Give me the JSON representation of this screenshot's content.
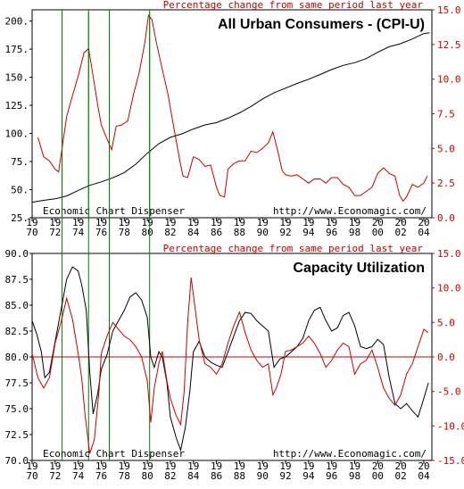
{
  "chart_data": [
    {
      "type": "line",
      "title": "All Urban Consumers - (CPI-U)",
      "subtitle": "Percentage change from same period last year",
      "left_label": "Economic Chart Dispenser",
      "right_label": "http://www.Economagic.com/",
      "x_range": [
        1970,
        2004.7
      ],
      "x_ticks": [
        1970,
        1972,
        1974,
        1976,
        1978,
        1980,
        1982,
        1984,
        1986,
        1988,
        1990,
        1992,
        1994,
        1996,
        1998,
        2000,
        2002,
        2004
      ],
      "x_tick_labels": [
        [
          "19",
          "70"
        ],
        [
          "19",
          "72"
        ],
        [
          "19",
          "74"
        ],
        [
          "19",
          "76"
        ],
        [
          "19",
          "78"
        ],
        [
          "19",
          "80"
        ],
        [
          "19",
          "82"
        ],
        [
          "19",
          "84"
        ],
        [
          "19",
          "86"
        ],
        [
          "19",
          "88"
        ],
        [
          "19",
          "90"
        ],
        [
          "19",
          "92"
        ],
        [
          "19",
          "94"
        ],
        [
          "19",
          "96"
        ],
        [
          "19",
          "98"
        ],
        [
          "20",
          "00"
        ],
        [
          "20",
          "02"
        ],
        [
          "20",
          "04"
        ]
      ],
      "y_left": {
        "range": [
          25,
          210
        ],
        "ticks": [
          "25.",
          "50.",
          "75.",
          "100.",
          "125.",
          "150.",
          "175.",
          "200."
        ],
        "tick_values": [
          25,
          50,
          75,
          100,
          125,
          150,
          175,
          200
        ],
        "color": "#000000"
      },
      "y_right": {
        "range": [
          0,
          15
        ],
        "ticks": [
          "0.0",
          "2.5",
          "5.0",
          "7.5",
          "10.0",
          "12.5",
          "15.0"
        ],
        "tick_values": [
          0,
          2.5,
          5,
          7.5,
          10,
          12.5,
          15
        ],
        "color": "#cc0000"
      },
      "series": [
        {
          "axis": "left",
          "color": "#000000",
          "x": [
            1970,
            1971,
            1972,
            1973,
            1974,
            1975,
            1976,
            1977,
            1978,
            1979,
            1980,
            1981,
            1982,
            1983,
            1984,
            1985,
            1986,
            1987,
            1988,
            1989,
            1990,
            1991,
            1992,
            1993,
            1994,
            1995,
            1996,
            1997,
            1998,
            1999,
            2000,
            2001,
            2002,
            2003,
            2004,
            2004.5
          ],
          "y": [
            38.8,
            40.5,
            41.8,
            44.4,
            49.3,
            53.8,
            56.9,
            60.6,
            65.2,
            72.6,
            82.4,
            90.9,
            96.5,
            99.6,
            103.9,
            107.6,
            109.6,
            113.6,
            118.3,
            124.0,
            130.7,
            136.2,
            140.3,
            144.5,
            148.2,
            152.4,
            156.9,
            160.5,
            163.0,
            166.6,
            172.2,
            177.1,
            179.9,
            184.0,
            188.9,
            189.5
          ]
        },
        {
          "axis": "right",
          "color": "#cc0000",
          "x": [
            1970.5,
            1971,
            1971.5,
            1972,
            1972.3,
            1973,
            1973.5,
            1974,
            1974.5,
            1974.9,
            1975.3,
            1975.7,
            1976,
            1976.4,
            1976.9,
            1977.3,
            1977.8,
            1978.3,
            1978.8,
            1979.3,
            1979.8,
            1980.1,
            1980.4,
            1980.8,
            1981.3,
            1981.8,
            1982.3,
            1982.8,
            1983.1,
            1983.5,
            1984,
            1984.5,
            1985,
            1985.5,
            1986,
            1986.3,
            1986.7,
            1987,
            1987.5,
            1988,
            1988.5,
            1989,
            1989.5,
            1990,
            1990.5,
            1990.9,
            1991.3,
            1991.7,
            1992,
            1992.5,
            1993,
            1993.5,
            1994,
            1994.5,
            1995,
            1995.5,
            1996,
            1996.5,
            1997,
            1997.5,
            1998,
            1998.5,
            1999,
            1999.5,
            2000,
            2000.5,
            2001,
            2001.5,
            2001.9,
            2002.2,
            2002.5,
            2003,
            2003.5,
            2004,
            2004.3
          ],
          "y": [
            5.8,
            4.4,
            4.1,
            3.5,
            3.3,
            7.3,
            8.8,
            10.2,
            11.9,
            12.2,
            10.2,
            8.1,
            6.7,
            5.9,
            4.9,
            6.6,
            6.7,
            7.0,
            8.9,
            10.5,
            12.7,
            14.6,
            14.3,
            12.6,
            10.7,
            8.9,
            6.5,
            4.2,
            3.0,
            2.9,
            4.4,
            4.2,
            3.7,
            3.8,
            2.2,
            1.6,
            1.5,
            3.5,
            3.9,
            4.1,
            4.1,
            4.8,
            4.7,
            5.0,
            5.4,
            6.2,
            4.9,
            3.4,
            3.1,
            3.0,
            3.1,
            2.8,
            2.5,
            2.8,
            2.8,
            2.5,
            2.9,
            2.9,
            2.4,
            2.2,
            1.6,
            1.6,
            1.9,
            2.2,
            3.2,
            3.6,
            3.2,
            3.0,
            1.6,
            1.2,
            1.5,
            2.4,
            2.2,
            2.5,
            3.0
          ]
        }
      ]
    },
    {
      "type": "line",
      "title": "Capacity Utilization",
      "subtitle": "Percentage change from same period last year",
      "left_label": "Economic Chart Dispenser",
      "right_label": "http://www.Economagic.com/",
      "x_range": [
        1970,
        2004.7
      ],
      "x_ticks": [
        1970,
        1972,
        1974,
        1976,
        1978,
        1980,
        1982,
        1984,
        1986,
        1988,
        1990,
        1992,
        1994,
        1996,
        1998,
        2000,
        2002,
        2004
      ],
      "x_tick_labels": [
        [
          "19",
          "70"
        ],
        [
          "19",
          "72"
        ],
        [
          "19",
          "74"
        ],
        [
          "19",
          "76"
        ],
        [
          "19",
          "78"
        ],
        [
          "19",
          "80"
        ],
        [
          "19",
          "82"
        ],
        [
          "19",
          "84"
        ],
        [
          "19",
          "86"
        ],
        [
          "19",
          "88"
        ],
        [
          "19",
          "90"
        ],
        [
          "19",
          "92"
        ],
        [
          "19",
          "94"
        ],
        [
          "19",
          "96"
        ],
        [
          "19",
          "98"
        ],
        [
          "20",
          "00"
        ],
        [
          "20",
          "02"
        ],
        [
          "20",
          "04"
        ]
      ],
      "y_left": {
        "range": [
          70,
          90
        ],
        "ticks": [
          "70.0",
          "72.5",
          "75.0",
          "77.5",
          "80.0",
          "82.5",
          "85.0",
          "87.5",
          "90.0"
        ],
        "tick_values": [
          70,
          72.5,
          75,
          77.5,
          80,
          82.5,
          85,
          87.5,
          90
        ],
        "color": "#000000"
      },
      "y_right": {
        "range": [
          -15,
          15
        ],
        "ticks": [
          "-15.0",
          "-10.0",
          "-5.0",
          "0.0",
          "5.0",
          "10.0",
          "15.0"
        ],
        "tick_values": [
          -15,
          -10,
          -5,
          0,
          5,
          10,
          15
        ],
        "color": "#cc0000"
      },
      "reference_line": {
        "axis": "right",
        "value": 0,
        "color": "#cc0000"
      },
      "series": [
        {
          "axis": "left",
          "color": "#000000",
          "x": [
            1970,
            1970.4,
            1970.8,
            1971.1,
            1971.5,
            1972,
            1972.5,
            1973,
            1973.5,
            1974,
            1974.3,
            1974.7,
            1975,
            1975.3,
            1975.7,
            1976,
            1976.5,
            1977,
            1977.5,
            1978,
            1978.5,
            1979,
            1979.5,
            1980,
            1980.3,
            1980.6,
            1981,
            1981.3,
            1981.7,
            1982,
            1982.5,
            1982.9,
            1983.3,
            1983.7,
            1984,
            1984.5,
            1985,
            1985.5,
            1986,
            1986.5,
            1987,
            1987.5,
            1988,
            1988.5,
            1989,
            1989.5,
            1990,
            1990.5,
            1991,
            1991.5,
            1992,
            1992.5,
            1993,
            1993.5,
            1994,
            1994.5,
            1995,
            1995.5,
            1996,
            1996.5,
            1997,
            1997.5,
            1998,
            1998.5,
            1999,
            1999.5,
            2000,
            2000.5,
            2001,
            2001.5,
            2002,
            2002.5,
            2003,
            2003.5,
            2004,
            2004.4
          ],
          "y": [
            83.5,
            82.2,
            80.5,
            78.0,
            78.5,
            81.5,
            84.5,
            87.5,
            88.7,
            88.3,
            87.0,
            84.5,
            78.5,
            74.5,
            76.5,
            78.8,
            80.2,
            82.5,
            83.5,
            84.5,
            85.8,
            86.2,
            85.5,
            83.8,
            80.0,
            79.0,
            80.5,
            80.0,
            77.5,
            74.2,
            72.2,
            71.0,
            73.2,
            76.8,
            80.5,
            81.5,
            80.0,
            79.5,
            79.2,
            79.0,
            80.5,
            82.0,
            83.5,
            84.3,
            84.2,
            83.5,
            83.0,
            82.5,
            79.0,
            79.8,
            80.0,
            80.5,
            81.0,
            81.8,
            83.5,
            84.5,
            84.8,
            83.5,
            82.5,
            82.8,
            84.0,
            84.3,
            83.0,
            81.0,
            80.8,
            81.0,
            81.7,
            81.2,
            78.0,
            75.5,
            75.0,
            75.5,
            74.8,
            74.2,
            76.0,
            77.5
          ]
        },
        {
          "axis": "right",
          "color": "#cc0000",
          "x": [
            1970,
            1970.5,
            1971,
            1971.5,
            1972,
            1972.5,
            1973,
            1973.5,
            1974,
            1974.3,
            1974.6,
            1975,
            1975.4,
            1975.8,
            1976,
            1976.5,
            1977,
            1977.5,
            1978,
            1978.5,
            1979,
            1979.5,
            1980,
            1980.3,
            1980.6,
            1981,
            1981.3,
            1981.7,
            1982,
            1982.5,
            1982.9,
            1983.2,
            1983.5,
            1983.8,
            1984,
            1984.5,
            1985,
            1985.5,
            1986,
            1986.5,
            1987,
            1987.5,
            1988,
            1988.5,
            1989,
            1989.5,
            1990,
            1990.5,
            1990.9,
            1991.2,
            1991.6,
            1992,
            1992.5,
            1993,
            1993.5,
            1994,
            1994.5,
            1995,
            1995.5,
            1996,
            1996.5,
            1997,
            1997.5,
            1998,
            1998.5,
            1999,
            1999.5,
            2000,
            2000.5,
            2001,
            2001.5,
            2002,
            2002.5,
            2003,
            2003.5,
            2004,
            2004.4
          ],
          "y": [
            0.5,
            -3.0,
            -4.5,
            -3.0,
            2.0,
            5.0,
            8.5,
            5.5,
            0.5,
            -3.0,
            -8.5,
            -14.0,
            -12.0,
            -5.0,
            0.5,
            3.0,
            5.0,
            4.0,
            3.0,
            2.5,
            1.5,
            0.0,
            -3.5,
            -9.5,
            -4.5,
            -1.0,
            0.8,
            -3.5,
            -6.0,
            -8.5,
            -9.8,
            -5.0,
            5.0,
            11.5,
            9.0,
            2.5,
            -1.0,
            -1.5,
            -2.5,
            -1.0,
            2.0,
            4.5,
            6.5,
            3.5,
            1.0,
            -0.5,
            -1.5,
            -1.0,
            -5.5,
            -4.5,
            -2.5,
            0.8,
            1.0,
            1.5,
            2.0,
            3.0,
            2.0,
            0.5,
            -1.5,
            -0.5,
            1.0,
            2.0,
            1.5,
            -2.5,
            -1.0,
            -0.5,
            1.0,
            -1.5,
            -4.5,
            -6.0,
            -7.0,
            -5.5,
            -2.5,
            -1.0,
            1.5,
            4.0,
            3.5
          ]
        }
      ],
      "event_lines_x": [
        1972.6,
        1974.9,
        1976.7,
        1980.2
      ]
    }
  ]
}
